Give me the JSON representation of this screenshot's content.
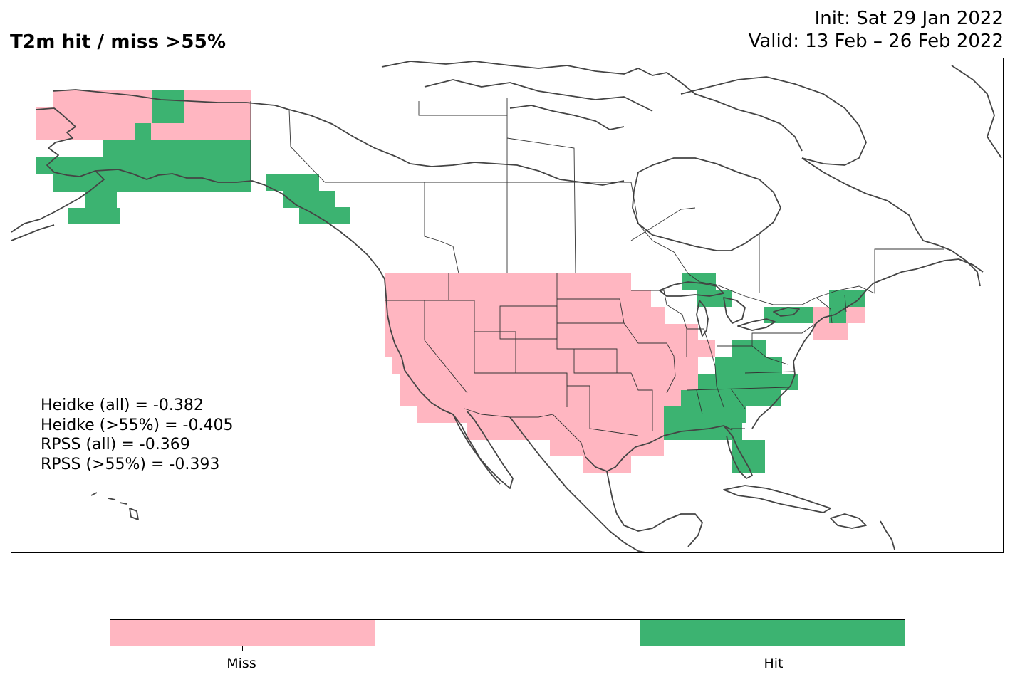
{
  "header": {
    "title": "T2m hit / miss  >55%",
    "init": "Init: Sat 29 Jan 2022",
    "valid": "Valid: 13 Feb – 26 Feb 2022"
  },
  "scores": [
    "Heidke (all) = -0.382",
    "Heidke (>55%) = -0.405",
    "RPSS (all) = -0.369",
    "RPSS (>55%) = -0.393"
  ],
  "colors": {
    "miss": "#ffb6c1",
    "neutral": "#ffffff",
    "hit": "#3cb371",
    "coastline": "#444444"
  },
  "legend": {
    "miss_label": "Miss",
    "hit_label": "Hit"
  },
  "map": {
    "region": "North America",
    "miss_regions": [
      "Alaska north slope",
      "Western and central United States",
      "Texas",
      "Mid-Atlantic coast"
    ],
    "hit_regions": [
      "Southern Alaska",
      "Alaska panhandle",
      "Great Lakes",
      "Southeastern United States",
      "Florida",
      "New England"
    ]
  }
}
